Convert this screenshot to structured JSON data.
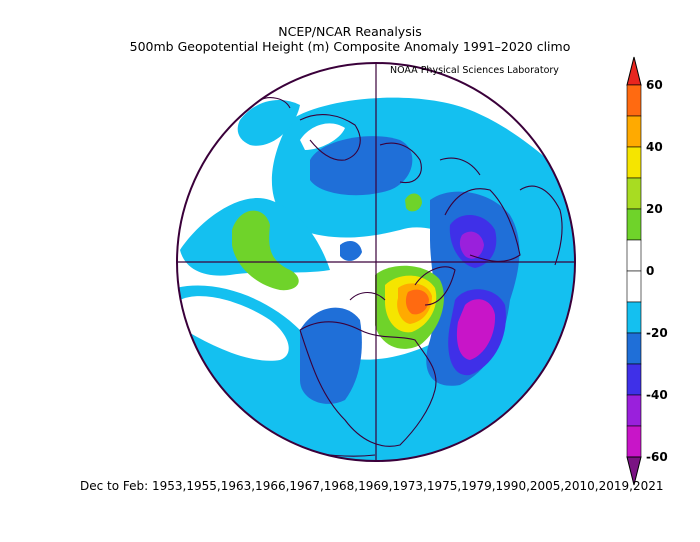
{
  "header": {
    "line1": "NCEP/NCAR Reanalysis",
    "line2": "500mb Geopotential Height (m) Composite Anomaly 1991–2020 climo",
    "credit": "NOAA Physical Sciences Laboratory"
  },
  "footer": {
    "text": "Dec to Feb: 1953,1955,1963,1966,1967,1968,1969,1973,1975,1979,1990,2005,2010,2019,2021"
  },
  "map": {
    "projection": "north polar stereographic",
    "variable": "500mb geopotential height anomaly",
    "units": "m"
  },
  "colorbar": {
    "labels": [
      "60",
      "40",
      "20",
      "0",
      "-20",
      "-40",
      "-60"
    ],
    "levels": [
      {
        "range": "above 60",
        "color": "#e8261f"
      },
      {
        "range": "50 to 60",
        "color": "#ff6a11"
      },
      {
        "range": "40 to 50",
        "color": "#ffaa00"
      },
      {
        "range": "30 to 40",
        "color": "#f5e500"
      },
      {
        "range": "20 to 30",
        "color": "#a8dc22"
      },
      {
        "range": "10 to 20",
        "color": "#6fd32a"
      },
      {
        "range": "0 to 10",
        "color": "#ffffff"
      },
      {
        "range": "-10 to 0",
        "color": "#ffffff"
      },
      {
        "range": "-20 to -10",
        "color": "#14c0f0"
      },
      {
        "range": "-30 to -20",
        "color": "#1f6fd8"
      },
      {
        "range": "-40 to -30",
        "color": "#3f30e8"
      },
      {
        "range": "-50 to -40",
        "color": "#9a20dc"
      },
      {
        "range": "-60 to -50",
        "color": "#c815c8"
      },
      {
        "range": "below -60",
        "color": "#7a1383"
      }
    ]
  }
}
